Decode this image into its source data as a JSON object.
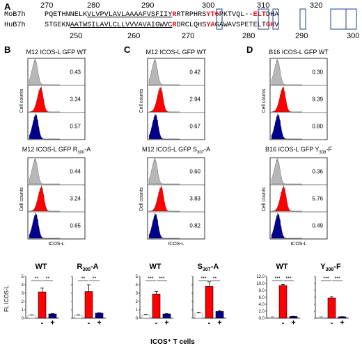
{
  "figure": {
    "panel_A": {
      "letter": "A",
      "top_numbers": [
        "270",
        "280",
        "290",
        "300",
        "310",
        "320"
      ],
      "bottom_numbers": [
        "250",
        "260",
        "270",
        "280",
        "290",
        "300"
      ],
      "mouse": {
        "label": "MoB7h",
        "seq_pre": "PQETHNNELK",
        "seq_tm": "VLVPVLAVLAAAAFVSFIIY",
        "seq_post": [
          "R",
          "RTRPHRS",
          "YT",
          "G",
          "PKTVQL",
          "-",
          "-",
          "ELT",
          "DH",
          "A"
        ],
        "sequence_full": "PQETHNNELKVLVPVLAVLAAAAFVSFIIYRRTRPHRSYTGPKTVQL--ELTDHA"
      },
      "human": {
        "label": "HuB7h",
        "seq_pre": "STGEKN",
        "seq_tm": "AATWSILAVLCLLVVVAVAIGWVC",
        "seq_post": [
          "R",
          "DRCLQHS",
          "YA",
          "G",
          "AWAVSPETELT",
          "GH",
          "V"
        ],
        "sequence_full": "STGEKNAATWSILAVLCLLVVVAVAIGWVCRDRCLQHSYAGAWAVSPETELTGHV"
      }
    },
    "panels": [
      {
        "letter": "B",
        "cell": "M12",
        "wt_title": "M12 ICOS-L GFP WT",
        "mut_title_pre": "M12 ICOS-L GFP R",
        "mut_sub": "300",
        "mut_title_post": "-A",
        "wt_values": [
          "0.43",
          "3.34",
          "0.57"
        ],
        "mut_values": [
          "0.44",
          "3.24",
          "0.65"
        ],
        "ylabel": "Cell counts",
        "xlabel": "ICOS-L",
        "bar_wt_title": "WT",
        "bar_mut_pre": "R",
        "bar_mut_sub": "300",
        "bar_mut_post": "-A",
        "ytick_labels": [
          "0",
          "1",
          "2",
          "3",
          "4",
          "5"
        ],
        "sig_wt": [
          "**",
          "**"
        ],
        "sig_mut": [
          "**",
          "**"
        ],
        "x_labels": [
          "-",
          "+"
        ]
      },
      {
        "letter": "C",
        "cell": "M12",
        "wt_title": "M12 ICOS-L GFP WT",
        "mut_title_pre": "M12 ICOS-L GFP S",
        "mut_sub": "307",
        "mut_title_post": "-A",
        "wt_values": [
          "0.42",
          "2.94",
          "0.67"
        ],
        "mut_values": [
          "0.60",
          "3.83",
          "0.82"
        ],
        "ylabel": "Cell counts",
        "xlabel": "ICOS-L",
        "bar_wt_title": "WT",
        "bar_mut_pre": "S",
        "bar_mut_sub": "307",
        "bar_mut_post": "-A",
        "ytick_labels": [
          "0",
          "1",
          "2",
          "3",
          "4",
          "5"
        ],
        "sig_wt": [
          "***",
          "***"
        ],
        "sig_mut": [
          "***",
          "**"
        ],
        "x_labels": [
          "-",
          "+"
        ]
      },
      {
        "letter": "D",
        "cell": "B16",
        "wt_title": "B16 ICOS-L GFP WT",
        "mut_title_pre": "B16 ICOS-L GFP Y",
        "mut_sub": "308",
        "mut_title_post": "-F",
        "wt_values": [
          "0.30",
          "9.39",
          "0.80"
        ],
        "mut_values": [
          "0.36",
          "5.76",
          "0.49"
        ],
        "ylabel": "Cell counts",
        "xlabel": "ICOS-L",
        "bar_wt_title": "WT",
        "bar_mut_pre": "Y",
        "bar_mut_sub": "308",
        "bar_mut_post": "-F",
        "ytick_labels": [
          "0.0",
          "2.0",
          "4.0",
          "6.0",
          "8.0",
          "10.0",
          "12.0"
        ],
        "sig_wt": [
          "***",
          "***"
        ],
        "sig_mut": [
          "***",
          "***"
        ],
        "x_labels": [
          "-",
          "+"
        ]
      }
    ],
    "shared_ylabel": "FL ICOS-L",
    "shared_xlabel": "ICOS⁺ T cells",
    "colors": {
      "control": "#b7b7b7",
      "gfp_minus": "#ff0000",
      "gfp_plus": "#00008b",
      "box": "#1f3f8f"
    }
  },
  "chart_data": [
    {
      "type": "bar",
      "panel": "B",
      "title": "WT",
      "categories": [
        "",
        "-",
        "+"
      ],
      "values": [
        0.35,
        3.15,
        0.5
      ],
      "errors": [
        0.05,
        0.45,
        0.05
      ],
      "ylim": [
        0,
        5
      ],
      "ylabel": "FL ICOS-L",
      "xlabel": "ICOS⁺ T cells"
    },
    {
      "type": "bar",
      "panel": "B",
      "title": "R300-A",
      "categories": [
        "",
        "-",
        "+"
      ],
      "values": [
        0.35,
        3.2,
        0.6
      ],
      "errors": [
        0.05,
        0.8,
        0.05
      ],
      "ylim": [
        0,
        5
      ]
    },
    {
      "type": "bar",
      "panel": "C",
      "title": "WT",
      "categories": [
        "",
        "-",
        "+"
      ],
      "values": [
        0.4,
        2.9,
        0.5
      ],
      "errors": [
        0.05,
        0.3,
        0.05
      ],
      "ylim": [
        0,
        5
      ]
    },
    {
      "type": "bar",
      "panel": "C",
      "title": "S307-A",
      "categories": [
        "",
        "-",
        "+"
      ],
      "values": [
        0.6,
        3.8,
        0.8
      ],
      "errors": [
        0.1,
        0.55,
        0.1
      ],
      "ylim": [
        0,
        5
      ]
    },
    {
      "type": "bar",
      "panel": "D",
      "title": "WT",
      "categories": [
        "",
        "-",
        "+"
      ],
      "values": [
        0.3,
        9.4,
        0.5
      ],
      "errors": [
        0.05,
        0.3,
        0.05
      ],
      "ylim": [
        0,
        12
      ]
    },
    {
      "type": "bar",
      "panel": "D",
      "title": "Y308-F",
      "categories": [
        "",
        "-",
        "+"
      ],
      "values": [
        0.3,
        5.8,
        0.4
      ],
      "errors": [
        0.05,
        0.4,
        0.05
      ],
      "ylim": [
        0,
        12
      ]
    }
  ]
}
